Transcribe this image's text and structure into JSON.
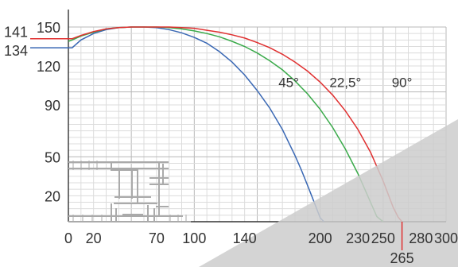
{
  "chart_data": {
    "type": "line",
    "title": "",
    "xlabel": "",
    "ylabel": "",
    "xlim": [
      0,
      300
    ],
    "ylim": [
      0,
      150
    ],
    "grid": true,
    "x_ticks": [
      0,
      20,
      70,
      100,
      140,
      200,
      230,
      250,
      280,
      300
    ],
    "y_ticks": [
      20,
      50,
      90,
      120,
      150
    ],
    "side_labels": [
      "141",
      "134"
    ],
    "endpoint_label": "265",
    "series": [
      {
        "name": "45°",
        "color": "#3a68b4",
        "x": [
          0,
          3,
          10,
          20,
          30,
          40,
          50,
          60,
          70,
          80,
          90,
          100,
          110,
          120,
          130,
          140,
          150,
          160,
          170,
          180,
          185,
          190,
          195,
          200,
          203
        ],
        "y": [
          134,
          134,
          140,
          145,
          148,
          149.5,
          150,
          150,
          149.5,
          148,
          145.5,
          142,
          137.5,
          131,
          123,
          113,
          101,
          87.5,
          71,
          51,
          40,
          28,
          15.5,
          3,
          0
        ]
      },
      {
        "name": "22,5°",
        "color": "#3aaa4a",
        "x": [
          0,
          3,
          10,
          20,
          30,
          40,
          50,
          60,
          70,
          80,
          90,
          100,
          110,
          120,
          130,
          140,
          150,
          160,
          170,
          180,
          190,
          200,
          210,
          220,
          230,
          240,
          245,
          250
        ],
        "y": [
          139,
          140,
          143,
          146,
          148.5,
          149.5,
          150,
          150,
          150,
          149.5,
          148.5,
          147,
          145,
          142.5,
          139,
          135,
          130,
          124,
          117,
          108.5,
          98.5,
          86.5,
          72.5,
          56,
          37,
          15,
          4,
          0
        ]
      },
      {
        "name": "90°",
        "color": "#e03030",
        "x": [
          0,
          3,
          10,
          20,
          30,
          40,
          50,
          60,
          70,
          80,
          90,
          100,
          110,
          120,
          130,
          140,
          150,
          160,
          170,
          180,
          190,
          200,
          210,
          220,
          230,
          240,
          250,
          258,
          262,
          265
        ],
        "y": [
          141,
          141,
          143.5,
          146.5,
          148.5,
          149.5,
          150,
          150,
          150,
          150,
          149.5,
          149,
          147.5,
          146,
          144,
          141.5,
          138,
          134,
          129,
          123,
          116,
          107.5,
          97.5,
          85.5,
          71,
          53.5,
          31.5,
          11,
          3.5,
          0
        ]
      }
    ]
  },
  "overlay_color": "#cccccc",
  "profile_icon": "window-profile-cross-section"
}
